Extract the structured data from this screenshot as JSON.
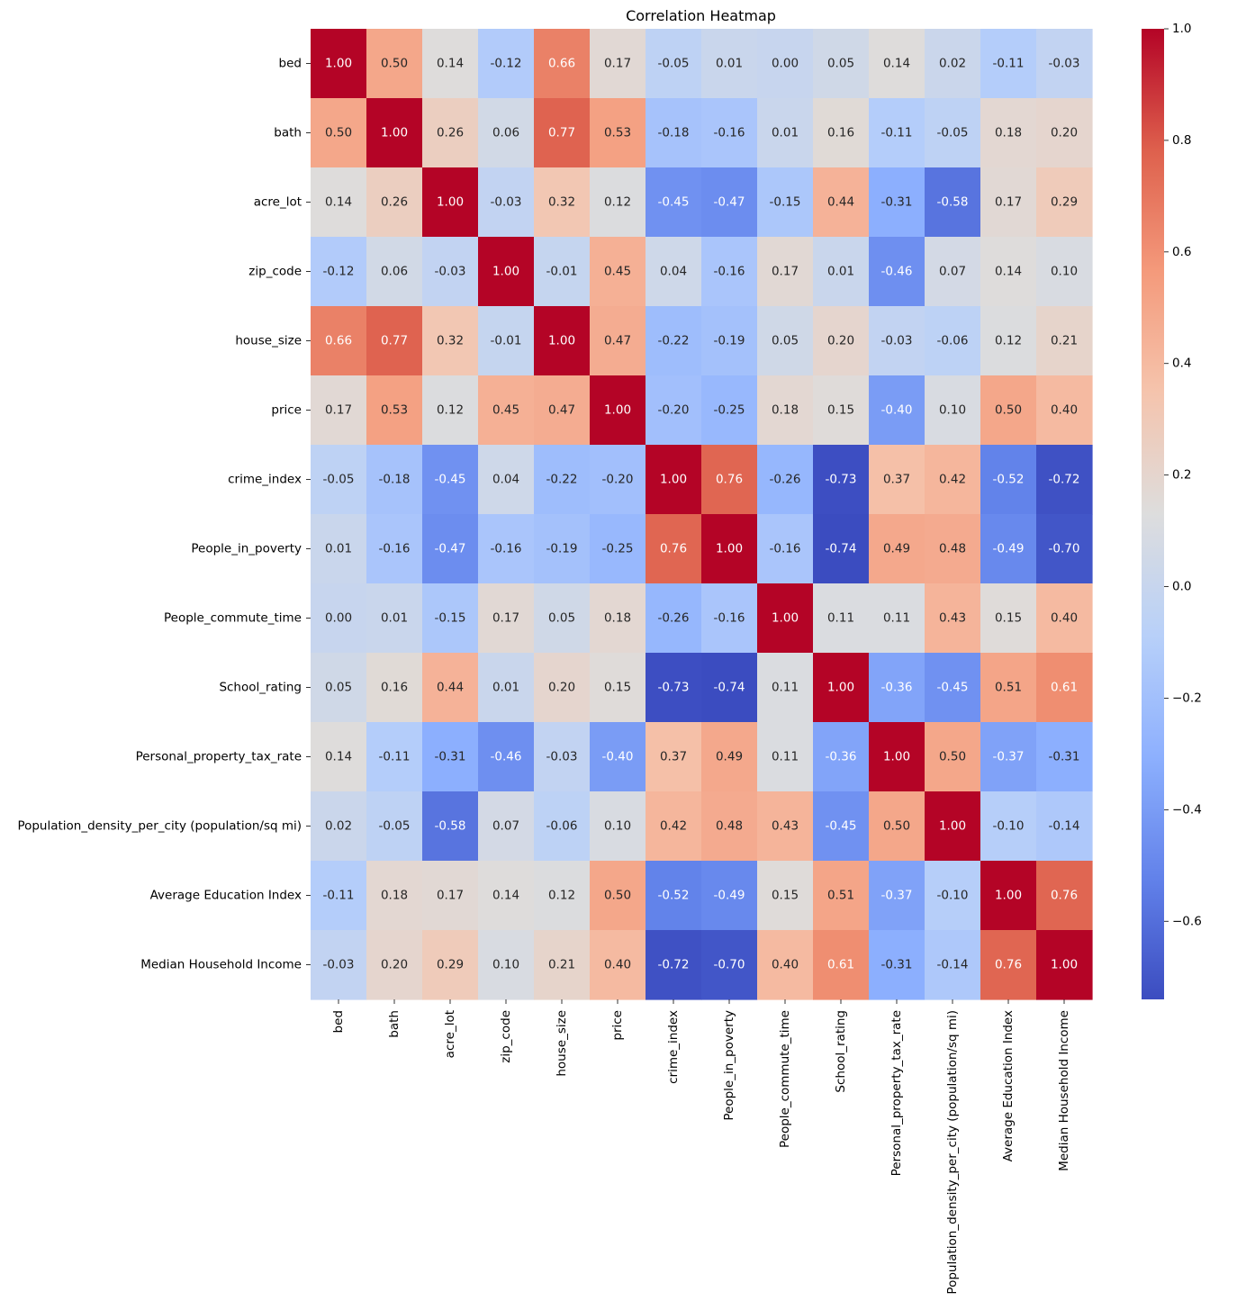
{
  "chart_data": {
    "type": "heatmap",
    "title": "Correlation Heatmap",
    "xlabel": "",
    "ylabel": "",
    "colormap": "coolwarm",
    "vmin": -0.74,
    "vmax": 1.0,
    "value_format": "2 decimals",
    "labels": [
      "bed",
      "bath",
      "acre_lot",
      "zip_code",
      "house_size",
      "price",
      "crime_index",
      "People_in_poverty",
      "People_commute_time",
      "School_rating",
      "Personal_property_tax_rate",
      "Population_density_per_city (population/sq mi)",
      "Average Education Index ",
      "Median Household Income "
    ],
    "matrix": [
      [
        1.0,
        0.5,
        0.14,
        -0.12,
        0.66,
        0.17,
        -0.05,
        0.01,
        -0.0,
        0.05,
        0.14,
        0.02,
        -0.11,
        -0.03
      ],
      [
        0.5,
        1.0,
        0.26,
        0.06,
        0.77,
        0.53,
        -0.18,
        -0.16,
        0.01,
        0.16,
        -0.11,
        -0.05,
        0.18,
        0.2
      ],
      [
        0.14,
        0.26,
        1.0,
        -0.03,
        0.32,
        0.12,
        -0.45,
        -0.47,
        -0.15,
        0.44,
        -0.31,
        -0.58,
        0.17,
        0.29
      ],
      [
        -0.12,
        0.06,
        -0.03,
        1.0,
        -0.01,
        0.45,
        0.04,
        -0.16,
        0.17,
        0.01,
        -0.46,
        0.07,
        0.14,
        0.1
      ],
      [
        0.66,
        0.77,
        0.32,
        -0.01,
        1.0,
        0.47,
        -0.22,
        -0.19,
        0.05,
        0.2,
        -0.03,
        -0.06,
        0.12,
        0.21
      ],
      [
        0.17,
        0.53,
        0.12,
        0.45,
        0.47,
        1.0,
        -0.2,
        -0.25,
        0.18,
        0.15,
        -0.4,
        0.1,
        0.5,
        0.4
      ],
      [
        -0.05,
        -0.18,
        -0.45,
        0.04,
        -0.22,
        -0.2,
        1.0,
        0.76,
        -0.26,
        -0.73,
        0.37,
        0.42,
        -0.52,
        -0.72
      ],
      [
        0.01,
        -0.16,
        -0.47,
        -0.16,
        -0.19,
        -0.25,
        0.76,
        1.0,
        -0.16,
        -0.74,
        0.49,
        0.48,
        -0.49,
        -0.7
      ],
      [
        -0.0,
        0.01,
        -0.15,
        0.17,
        0.05,
        0.18,
        -0.26,
        -0.16,
        1.0,
        0.11,
        0.11,
        0.43,
        0.15,
        0.4
      ],
      [
        0.05,
        0.16,
        0.44,
        0.01,
        0.2,
        0.15,
        -0.73,
        -0.74,
        0.11,
        1.0,
        -0.36,
        -0.45,
        0.51,
        0.61
      ],
      [
        0.14,
        -0.11,
        -0.31,
        -0.46,
        -0.03,
        -0.4,
        0.37,
        0.49,
        0.11,
        -0.36,
        1.0,
        0.5,
        -0.37,
        -0.31
      ],
      [
        0.02,
        -0.05,
        -0.58,
        0.07,
        -0.06,
        0.1,
        0.42,
        0.48,
        0.43,
        -0.45,
        0.5,
        1.0,
        -0.1,
        -0.14
      ],
      [
        -0.11,
        0.18,
        0.17,
        0.14,
        0.12,
        0.5,
        -0.52,
        -0.49,
        0.15,
        0.51,
        -0.37,
        -0.1,
        1.0,
        0.76
      ],
      [
        -0.03,
        0.2,
        0.29,
        0.1,
        0.21,
        0.4,
        -0.72,
        -0.7,
        0.4,
        0.61,
        -0.31,
        -0.14,
        0.76,
        1.0
      ]
    ],
    "colorbar": {
      "ticks": [
        -0.6,
        -0.4,
        -0.2,
        0.0,
        0.2,
        0.4,
        0.6,
        0.8,
        1.0
      ],
      "tick_labels": [
        "−0.6",
        "−0.4",
        "−0.2",
        "0.0",
        "0.2",
        "0.4",
        "0.6",
        "0.8",
        "1.0"
      ]
    }
  }
}
